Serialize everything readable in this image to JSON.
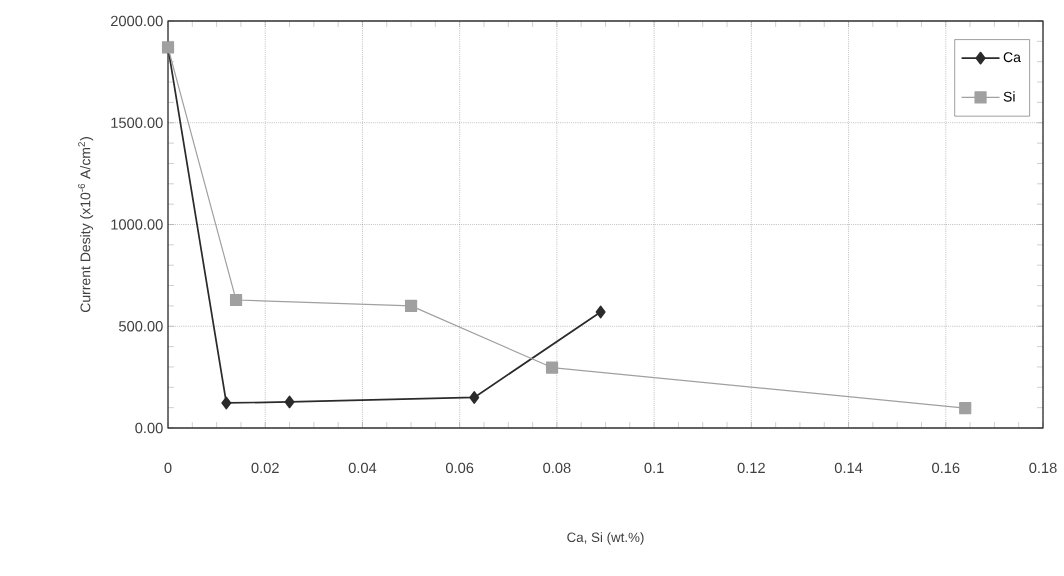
{
  "chart_data": {
    "type": "line",
    "xlabel": "Ca, Si (wt.%)",
    "ylabel": "Current Desity (x10$^{-6}$ A/cm$^{2}$)",
    "xlim": [
      0,
      0.18
    ],
    "ylim": [
      0,
      2000
    ],
    "xticks": [
      {
        "value": 0,
        "label": "0"
      },
      {
        "value": 0.02,
        "label": "0.02"
      },
      {
        "value": 0.04,
        "label": "0.04"
      },
      {
        "value": 0.06,
        "label": "0.06"
      },
      {
        "value": 0.08,
        "label": "0.08"
      },
      {
        "value": 0.1,
        "label": "0.1"
      },
      {
        "value": 0.12,
        "label": "0.12"
      },
      {
        "value": 0.14,
        "label": "0.14"
      },
      {
        "value": 0.16,
        "label": "0.16"
      },
      {
        "value": 0.18,
        "label": "0.18"
      }
    ],
    "yticks": [
      {
        "value": 0,
        "label": "0.00"
      },
      {
        "value": 500,
        "label": "500.00"
      },
      {
        "value": 1000,
        "label": "1000.00"
      },
      {
        "value": 1500,
        "label": "1500.00"
      },
      {
        "value": 2000,
        "label": "2000.00"
      }
    ],
    "grid": true,
    "legend": "top right",
    "series": [
      {
        "name": "Ca",
        "color": "#2b2b2b",
        "marker": "diamond",
        "x": [
          0,
          0.012,
          0.025,
          0.063,
          0.089
        ],
        "values": [
          1870,
          123,
          128,
          150,
          570
        ]
      },
      {
        "name": "Si",
        "color": "#a0a0a0",
        "marker": "square",
        "x": [
          0,
          0.014,
          0.05,
          0.079,
          0.164
        ],
        "values": [
          1870,
          629,
          600,
          297,
          98
        ]
      }
    ]
  }
}
